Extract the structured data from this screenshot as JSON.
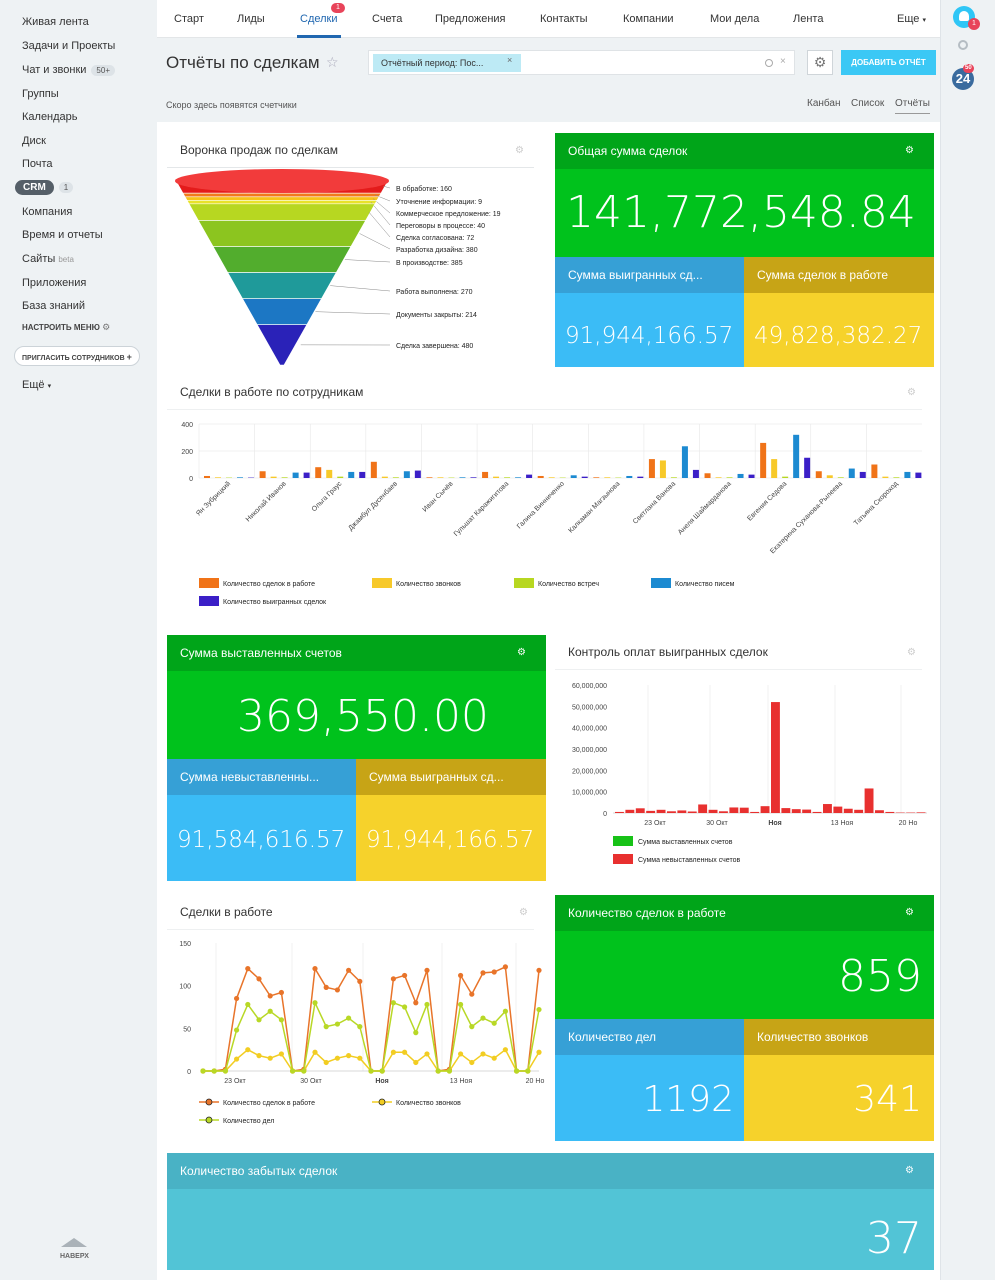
{
  "leftnav": {
    "items": [
      "Живая лента",
      "Задачи и Проекты",
      "Чат и звонки",
      "Группы",
      "Календарь",
      "Диск",
      "Почта",
      "CRM",
      "Компания",
      "Время и отчеты",
      "Сайты",
      "Приложения",
      "База знаний"
    ],
    "chat_badge": "50+",
    "crm_badge": "1",
    "sites_beta": "beta",
    "configure_menu": "НАСТРОИТЬ МЕНЮ",
    "invite": "ПРИГЛАСИТЬ СОТРУДНИКОВ",
    "more": "Ещё",
    "up": "НАВЕРХ"
  },
  "rightbar": {
    "bell_count": "1",
    "b24_label": "24",
    "b24_count": "50"
  },
  "topnav": {
    "tabs": [
      "Старт",
      "Лиды",
      "Сделки",
      "Счета",
      "Предложения",
      "Контакты",
      "Компании",
      "Мои дела",
      "Лента",
      "Еще"
    ],
    "active_count": "1"
  },
  "page": {
    "title": "Отчёты по сделкам",
    "filter_tag": "Отчётный период: Пос...",
    "add_button": "ДОБАВИТЬ ОТЧЁТ",
    "subheader": "Скоро здесь появятся счетчики",
    "views": [
      "Канбан",
      "Список",
      "Отчёты"
    ]
  },
  "funnel": {
    "title": "Воронка продаж по сделкам",
    "stages": [
      {
        "label": "В обработке: 160",
        "color": "#e41b1b"
      },
      {
        "label": "Уточнение информации: 9",
        "color": "#f07b1c"
      },
      {
        "label": "Коммерческое предложение: 19",
        "color": "#f7c21c"
      },
      {
        "label": "Переговоры в процессе: 40",
        "color": "#e8e22a"
      },
      {
        "label": "Сделка согласована: 72",
        "color": "#b7d721"
      },
      {
        "label": "Разработка дизайна: 380",
        "color": "#8cc51f"
      },
      {
        "label": "В производстве: 385",
        "color": "#52ad2d"
      },
      {
        "label": "Работа выполнена: 270",
        "color": "#1f9a9a"
      },
      {
        "label": "Документы закрыты: 214",
        "color": "#1c77c4"
      },
      {
        "label": "Сделка завершена: 480",
        "color": "#2a22b8"
      }
    ]
  },
  "total": {
    "title": "Общая сумма сделок",
    "value": "141,772,548.84",
    "won_title": "Сумма выигранных сд...",
    "won_value": "91,944,166.57",
    "work_title": "Сумма сделок в работе",
    "work_value": "49,828,382.27"
  },
  "employees_chart": {
    "title": "Сделки в работе по сотрудникам",
    "chart_data": {
      "type": "bar",
      "y_ticks": [
        "0",
        "200",
        "400"
      ],
      "ylim": [
        0,
        400
      ],
      "categories": [
        "Ян Зубрицкий",
        "Николай Иванов",
        "Ольга Граус",
        "Джамбул Дусенбаев",
        "Иван Сычёв",
        "Гульшат Каражигитова",
        "Галина Винниченко",
        "Калкаман Магзынова",
        "Светлана Ванова",
        "Анеля Шаймарданова",
        "Евгения Седова",
        "Екатерина Суханова-Рылеева",
        "Татьяна Скороход"
      ],
      "series": [
        {
          "name": "Количество сделок в работе",
          "color": "#f07318",
          "values": [
            15,
            50,
            80,
            120,
            5,
            45,
            15,
            5,
            140,
            35,
            260,
            50,
            100
          ]
        },
        {
          "name": "Количество звонков",
          "color": "#f7c92a",
          "values": [
            5,
            10,
            60,
            10,
            5,
            10,
            5,
            5,
            130,
            5,
            140,
            20,
            10
          ]
        },
        {
          "name": "Количество встреч",
          "color": "#b7d721",
          "values": [
            3,
            5,
            10,
            5,
            3,
            5,
            3,
            3,
            5,
            5,
            10,
            5,
            5
          ]
        },
        {
          "name": "Количество писем",
          "color": "#1c8ad1",
          "values": [
            5,
            40,
            45,
            50,
            5,
            5,
            20,
            15,
            235,
            30,
            320,
            70,
            45
          ]
        },
        {
          "name": "Количество выигранных сделок",
          "color": "#3b1fc7",
          "values": [
            3,
            40,
            45,
            55,
            5,
            25,
            10,
            10,
            60,
            25,
            150,
            45,
            40
          ]
        }
      ]
    }
  },
  "invoices": {
    "title": "Сумма выставленных счетов",
    "value": "369,550.00",
    "unbilled_title": "Сумма невыставленны...",
    "unbilled_value": "91,584,616.57",
    "won_title": "Сумма выигранных сд...",
    "won_value": "91,944,166.57"
  },
  "payments_chart": {
    "title": "Контроль оплат выигранных сделок",
    "chart_data": {
      "type": "bar",
      "y_ticks": [
        "0",
        "10,000,000",
        "20,000,000",
        "30,000,000",
        "40,000,000",
        "50,000,000",
        "60,000,000"
      ],
      "ylim": [
        0,
        60000000
      ],
      "x_labels": [
        "23 Окт",
        "30 Окт",
        "Ноя",
        "13 Ноя",
        "20 Но"
      ],
      "series": [
        {
          "name": "Сумма выставленных счетов",
          "color": "#17c217",
          "values": [
            0,
            0,
            0,
            0,
            0,
            0,
            0,
            0,
            0,
            0,
            0,
            0,
            0,
            0,
            0,
            0,
            0,
            0,
            0,
            0,
            0,
            0,
            0,
            0,
            0,
            0,
            0,
            0,
            0,
            0
          ]
        },
        {
          "name": "Сумма невыставленных счетов",
          "color": "#e8302f",
          "values": [
            500000,
            1500000,
            2200000,
            1000000,
            1500000,
            800000,
            1200000,
            700000,
            4000000,
            1500000,
            800000,
            2600000,
            2500000,
            500000,
            3200000,
            52000000,
            2300000,
            1800000,
            1600000,
            500000,
            4200000,
            3000000,
            2000000,
            1500000,
            11500000,
            1300000,
            500000,
            200000,
            200000,
            300000
          ]
        }
      ]
    }
  },
  "in_work_chart": {
    "title": "Сделки в работе",
    "chart_data": {
      "type": "line",
      "y_ticks": [
        "0",
        "50",
        "100",
        "150"
      ],
      "ylim": [
        0,
        150
      ],
      "x_labels": [
        "23 Окт",
        "30 Окт",
        "Ноя",
        "13 Ноя",
        "20 Но"
      ],
      "series": [
        {
          "name": "Количество сделок в работе",
          "color": "#e8742a",
          "values": [
            0,
            0,
            2,
            85,
            120,
            108,
            88,
            92,
            0,
            2,
            120,
            98,
            95,
            118,
            105,
            0,
            0,
            108,
            112,
            80,
            118,
            0,
            2,
            112,
            90,
            115,
            116,
            122,
            0,
            0,
            118
          ]
        },
        {
          "name": "Количество звонков",
          "color": "#f2cd22",
          "values": [
            0,
            0,
            0,
            14,
            25,
            18,
            15,
            20,
            0,
            0,
            22,
            10,
            15,
            18,
            15,
            0,
            0,
            22,
            22,
            10,
            20,
            0,
            0,
            20,
            10,
            20,
            15,
            25,
            0,
            0,
            22
          ]
        },
        {
          "name": "Количество дел",
          "color": "#b8d826",
          "values": [
            0,
            0,
            0,
            48,
            78,
            60,
            70,
            60,
            0,
            0,
            80,
            52,
            55,
            62,
            52,
            0,
            0,
            80,
            75,
            45,
            78,
            0,
            0,
            78,
            52,
            62,
            56,
            70,
            0,
            0,
            72
          ]
        }
      ]
    }
  },
  "deals_count": {
    "title": "Количество сделок в работе",
    "value": "859",
    "tasks_title": "Количество дел",
    "tasks_value": "1192",
    "calls_title": "Количество звонков",
    "calls_value": "341"
  },
  "forgotten": {
    "title": "Количество забытых сделок",
    "value": "37"
  }
}
